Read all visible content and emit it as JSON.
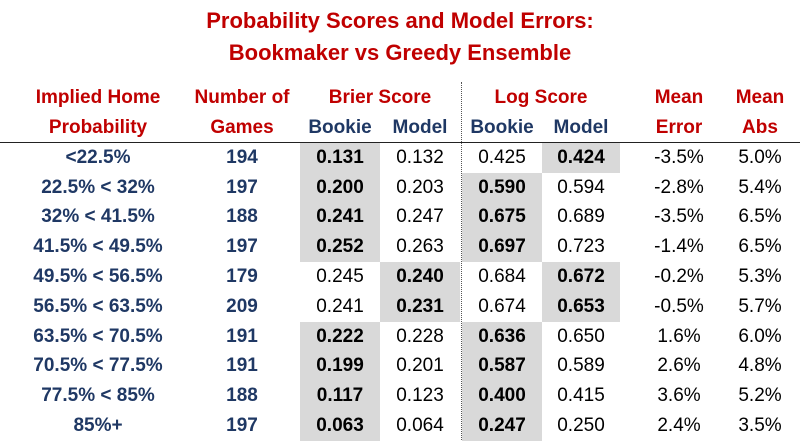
{
  "title": {
    "line1": "Probability Scores and Model Errors:",
    "line2": "Bookmaker vs Greedy Ensemble"
  },
  "headers": {
    "implied_line1": "Implied Home",
    "implied_line2": "Probability",
    "games_line1": "Number of",
    "games_line2": "Games",
    "brier": "Brier Score",
    "log": "Log Score",
    "mean_error_line1": "Mean",
    "mean_error_line2": "Error",
    "mean_abs_line1": "Mean",
    "mean_abs_line2": "Abs",
    "brier_bookie": "Bookie",
    "brier_model": "Model",
    "log_bookie": "Bookie",
    "log_model": "Model"
  },
  "rows": [
    {
      "range": "<22.5%",
      "games": "194",
      "brier_bookie": "0.131",
      "brier_model": "0.132",
      "log_bookie": "0.425",
      "log_model": "0.424",
      "mean_error": "-3.5%",
      "mean_abs": "5.0%",
      "brier_best": "bookie",
      "log_best": "model"
    },
    {
      "range": "22.5% < 32%",
      "games": "197",
      "brier_bookie": "0.200",
      "brier_model": "0.203",
      "log_bookie": "0.590",
      "log_model": "0.594",
      "mean_error": "-2.8%",
      "mean_abs": "5.4%",
      "brier_best": "bookie",
      "log_best": "bookie"
    },
    {
      "range": "32% < 41.5%",
      "games": "188",
      "brier_bookie": "0.241",
      "brier_model": "0.247",
      "log_bookie": "0.675",
      "log_model": "0.689",
      "mean_error": "-3.5%",
      "mean_abs": "6.5%",
      "brier_best": "bookie",
      "log_best": "bookie"
    },
    {
      "range": "41.5% < 49.5%",
      "games": "197",
      "brier_bookie": "0.252",
      "brier_model": "0.263",
      "log_bookie": "0.697",
      "log_model": "0.723",
      "mean_error": "-1.4%",
      "mean_abs": "6.5%",
      "brier_best": "bookie",
      "log_best": "bookie"
    },
    {
      "range": "49.5% < 56.5%",
      "games": "179",
      "brier_bookie": "0.245",
      "brier_model": "0.240",
      "log_bookie": "0.684",
      "log_model": "0.672",
      "mean_error": "-0.2%",
      "mean_abs": "5.3%",
      "brier_best": "model",
      "log_best": "model"
    },
    {
      "range": "56.5% < 63.5%",
      "games": "209",
      "brier_bookie": "0.241",
      "brier_model": "0.231",
      "log_bookie": "0.674",
      "log_model": "0.653",
      "mean_error": "-0.5%",
      "mean_abs": "5.7%",
      "brier_best": "model",
      "log_best": "model"
    },
    {
      "range": "63.5% < 70.5%",
      "games": "191",
      "brier_bookie": "0.222",
      "brier_model": "0.228",
      "log_bookie": "0.636",
      "log_model": "0.650",
      "mean_error": "1.6%",
      "mean_abs": "6.0%",
      "brier_best": "bookie",
      "log_best": "bookie"
    },
    {
      "range": "70.5% < 77.5%",
      "games": "191",
      "brier_bookie": "0.199",
      "brier_model": "0.201",
      "log_bookie": "0.587",
      "log_model": "0.589",
      "mean_error": "2.6%",
      "mean_abs": "4.8%",
      "brier_best": "bookie",
      "log_best": "bookie"
    },
    {
      "range": "77.5% < 85%",
      "games": "188",
      "brier_bookie": "0.117",
      "brier_model": "0.123",
      "log_bookie": "0.400",
      "log_model": "0.415",
      "mean_error": "3.6%",
      "mean_abs": "5.2%",
      "brier_best": "bookie",
      "log_best": "bookie"
    },
    {
      "range": "85%+",
      "games": "197",
      "brier_bookie": "0.063",
      "brier_model": "0.064",
      "log_bookie": "0.247",
      "log_model": "0.250",
      "mean_error": "2.4%",
      "mean_abs": "3.5%",
      "brier_best": "bookie",
      "log_best": "bookie"
    }
  ],
  "colors": {
    "title": "#c00000",
    "label": "#1f3864",
    "highlight": "#d9d9d9"
  }
}
